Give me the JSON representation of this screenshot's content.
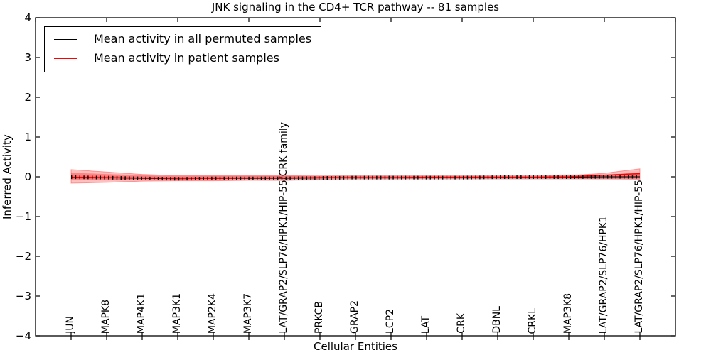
{
  "title": "JNK signaling in the CD4+ TCR pathway -- 81 samples",
  "axes": {
    "xlabel": "Cellular Entities",
    "ylabel": "Inferred Activity",
    "ytick_labels": [
      "4",
      "3",
      "2",
      "1",
      "0",
      "−1",
      "−2",
      "−3",
      "−4"
    ]
  },
  "legend": {
    "entries": [
      {
        "label": "Mean activity in all permuted samples",
        "color": "#000000"
      },
      {
        "label": "Mean activity in patient samples",
        "color": "#ff0000"
      }
    ]
  },
  "chart_data": {
    "type": "line",
    "title": "JNK signaling in the CD4+ TCR pathway -- 81 samples",
    "xlabel": "Cellular Entities",
    "ylabel": "Inferred Activity",
    "xlim": [
      0,
      18
    ],
    "ylim": [
      -4,
      4
    ],
    "yticks": [
      4,
      3,
      2,
      1,
      0,
      -1,
      -2,
      -3,
      -4
    ],
    "xticks_top": [
      0,
      2,
      4,
      6,
      8,
      10,
      12,
      14,
      16,
      18
    ],
    "grid": false,
    "legend_position": "upper left",
    "category_x": [
      1,
      2,
      3,
      4,
      5,
      6,
      7,
      8,
      9,
      10,
      11,
      12,
      13,
      14,
      15,
      16,
      17
    ],
    "categories": [
      "JUN",
      "MAPK8",
      "MAP4K1",
      "MAP3K1",
      "MAP2K4",
      "MAP3K7",
      "LAT/GRAP2/SLP76/HPK1/HIP-55/CRK family",
      "PRKCB",
      "GRAP2",
      "LCP2",
      "LAT",
      "CRK",
      "DBNL",
      "CRKL",
      "MAP3K8",
      "LAT/GRAP2/SLP76/HPK1",
      "LAT/GRAP2/SLP76/HPK1/HIP-55"
    ],
    "series": [
      {
        "name": "Mean activity in all permuted samples",
        "color": "#000000",
        "style": "solid-with-tick-markers",
        "values": [
          -0.01,
          -0.02,
          -0.04,
          -0.05,
          -0.04,
          -0.04,
          -0.04,
          -0.03,
          -0.02,
          -0.02,
          -0.02,
          -0.02,
          -0.01,
          -0.01,
          -0.01,
          0.0,
          0.0
        ],
        "band": {
          "color": "#888888",
          "opacity": 0.3,
          "upper": [
            0.03,
            0.02,
            0.01,
            0.0,
            0.01,
            0.01,
            0.02,
            0.03,
            0.04,
            0.04,
            0.05,
            0.05,
            0.05,
            0.05,
            0.06,
            0.06,
            0.07
          ],
          "lower": [
            -0.05,
            -0.06,
            -0.08,
            -0.09,
            -0.09,
            -0.09,
            -0.1,
            -0.09,
            -0.09,
            -0.08,
            -0.08,
            -0.08,
            -0.08,
            -0.08,
            -0.08,
            -0.07,
            -0.06
          ]
        }
      },
      {
        "name": "Mean activity in patient samples",
        "color": "#ff0000",
        "style": "solid",
        "values": [
          -0.01,
          -0.02,
          -0.03,
          -0.04,
          -0.04,
          -0.03,
          -0.03,
          -0.02,
          -0.02,
          -0.02,
          -0.01,
          -0.01,
          -0.01,
          -0.01,
          0.0,
          0.04,
          0.08
        ],
        "band": {
          "color": "#ff0000",
          "opacity": 0.25,
          "upper": [
            0.18,
            0.12,
            0.06,
            0.03,
            0.03,
            0.03,
            0.03,
            0.02,
            0.02,
            0.02,
            0.02,
            0.02,
            0.02,
            0.02,
            0.03,
            0.09,
            0.2
          ],
          "lower": [
            -0.16,
            -0.14,
            -0.11,
            -0.1,
            -0.1,
            -0.09,
            -0.09,
            -0.06,
            -0.05,
            -0.05,
            -0.04,
            -0.04,
            -0.04,
            -0.04,
            -0.04,
            -0.05,
            -0.06
          ]
        },
        "band_inner": {
          "color": "#ff0000",
          "opacity": 0.3,
          "upper": [
            0.1,
            0.07,
            0.04,
            0.02,
            0.02,
            0.02,
            0.02,
            0.01,
            0.01,
            0.01,
            0.01,
            0.01,
            0.01,
            0.01,
            0.02,
            0.05,
            0.11
          ],
          "lower": [
            -0.09,
            -0.08,
            -0.06,
            -0.06,
            -0.06,
            -0.05,
            -0.05,
            -0.04,
            -0.03,
            -0.03,
            -0.03,
            -0.03,
            -0.03,
            -0.03,
            -0.03,
            -0.03,
            -0.04
          ]
        }
      }
    ]
  }
}
